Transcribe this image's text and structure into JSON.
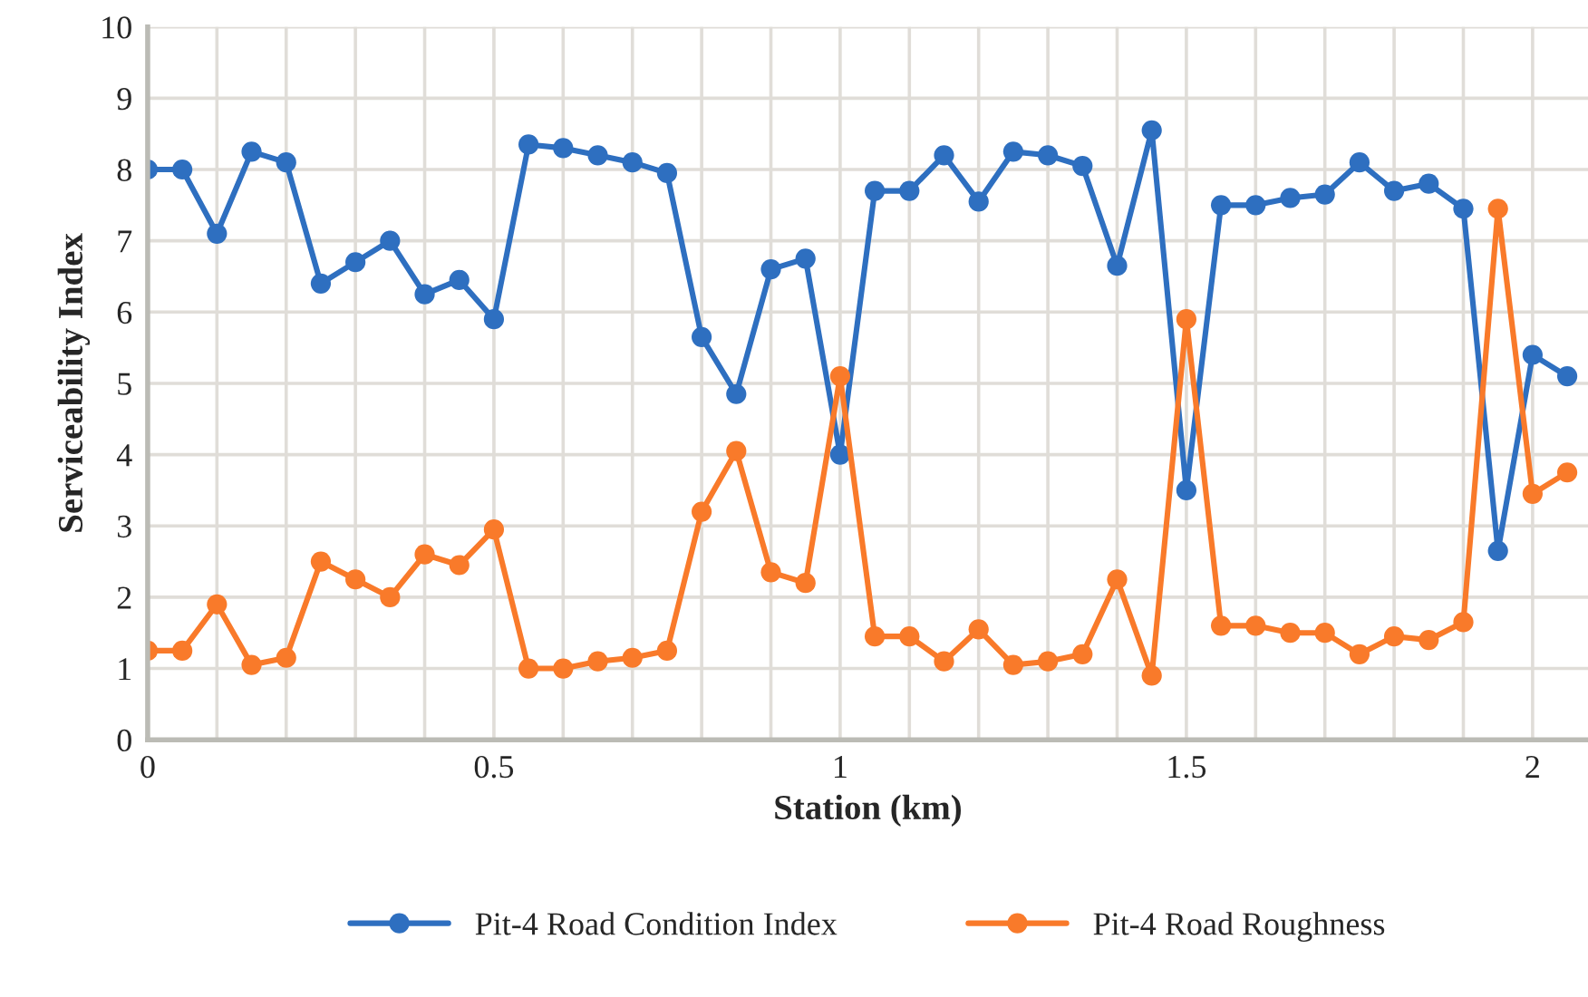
{
  "chart_data": {
    "type": "line",
    "xlabel": "Station (km)",
    "ylabel": "Serviceability Index",
    "xlim": [
      0,
      2.08
    ],
    "xticks": [
      0,
      {
        "value": 0.1,
        "label": null
      },
      {
        "value": 0.2,
        "label": null
      },
      {
        "value": 0.3,
        "label": null
      },
      {
        "value": 0.4,
        "label": null
      },
      0.5,
      {
        "value": 0.6,
        "label": null
      },
      {
        "value": 0.7,
        "label": null
      },
      {
        "value": 0.8,
        "label": null
      },
      {
        "value": 0.9,
        "label": null
      },
      1,
      {
        "value": 1.1,
        "label": null
      },
      {
        "value": 1.2,
        "label": null
      },
      {
        "value": 1.3,
        "label": null
      },
      {
        "value": 1.4,
        "label": null
      },
      1.5,
      {
        "value": 1.6,
        "label": null
      },
      {
        "value": 1.7,
        "label": null
      },
      {
        "value": 1.8,
        "label": null
      },
      {
        "value": 1.9,
        "label": null
      },
      2
    ],
    "ylim": [
      0,
      10
    ],
    "yticks": [
      0,
      1,
      2,
      3,
      4,
      5,
      6,
      7,
      8,
      9,
      10
    ],
    "x": [
      0,
      0.05,
      0.1,
      0.15,
      0.2,
      0.25,
      0.3,
      0.35,
      0.4,
      0.45,
      0.5,
      0.55,
      0.6,
      0.65,
      0.7,
      0.75,
      0.8,
      0.85,
      0.9,
      0.95,
      1,
      1.05,
      1.1,
      1.15,
      1.2,
      1.25,
      1.3,
      1.35,
      1.4,
      1.45,
      1.5,
      1.55,
      1.6,
      1.65,
      1.7,
      1.75,
      1.8,
      1.85,
      1.9,
      1.95,
      2,
      2.05
    ],
    "series": [
      {
        "name": "Pit-4 Road Condition Index",
        "color": "#2e6fc0",
        "values": [
          8.0,
          8.0,
          7.1,
          8.25,
          8.1,
          6.4,
          6.7,
          7.0,
          6.25,
          6.45,
          5.9,
          8.35,
          8.3,
          8.2,
          8.1,
          7.95,
          5.65,
          4.85,
          6.6,
          6.75,
          4.0,
          7.7,
          7.7,
          8.2,
          7.55,
          8.25,
          8.2,
          8.05,
          6.65,
          8.55,
          3.5,
          7.5,
          7.5,
          7.6,
          7.65,
          8.1,
          7.7,
          7.8,
          7.45,
          2.65,
          5.4,
          5.1
        ]
      },
      {
        "name": "Pit-4 Road Roughness",
        "color": "#f97a2a",
        "values": [
          1.25,
          1.25,
          1.9,
          1.05,
          1.15,
          2.5,
          2.25,
          2.0,
          2.6,
          2.45,
          2.95,
          1.0,
          1.0,
          1.1,
          1.15,
          1.25,
          3.2,
          4.05,
          2.35,
          2.2,
          5.1,
          1.45,
          1.45,
          1.1,
          1.55,
          1.05,
          1.1,
          1.2,
          2.25,
          0.9,
          5.9,
          1.6,
          1.6,
          1.5,
          1.5,
          1.2,
          1.45,
          1.4,
          1.65,
          7.45,
          3.45,
          3.75
        ]
      }
    ],
    "grid": true,
    "legend": "bottom",
    "marker": "circle",
    "line_style": "solid"
  }
}
